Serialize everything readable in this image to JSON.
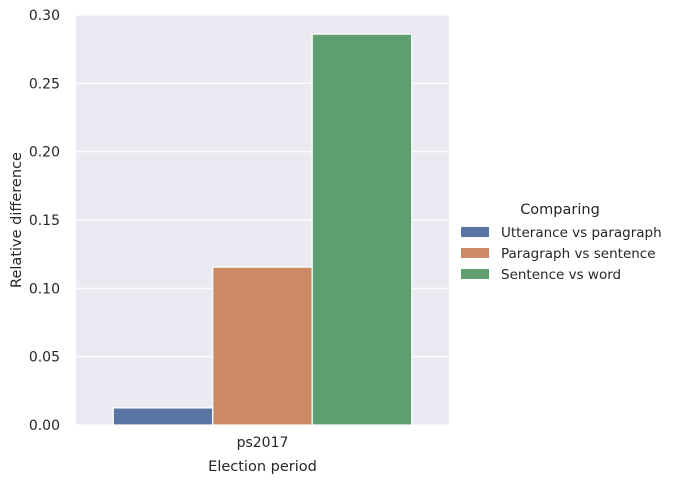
{
  "chart_data": {
    "type": "bar",
    "categories": [
      "ps2017"
    ],
    "series": [
      {
        "name": "Utterance vs paragraph",
        "values": [
          0.0125
        ],
        "color": "#5875a4"
      },
      {
        "name": "Paragraph vs sentence",
        "values": [
          0.1155
        ],
        "color": "#cc8963"
      },
      {
        "name": "Sentence vs word",
        "values": [
          0.286
        ],
        "color": "#5f9e6e"
      }
    ],
    "xlabel": "Election period",
    "ylabel": "Relative difference",
    "ylim": [
      0,
      0.3
    ],
    "yticks": [
      "0.00",
      "0.05",
      "0.10",
      "0.15",
      "0.20",
      "0.25",
      "0.30"
    ],
    "legend_title": "Comparing",
    "legend_position": "right",
    "grid": true,
    "background_color": "#eaeaf2"
  }
}
